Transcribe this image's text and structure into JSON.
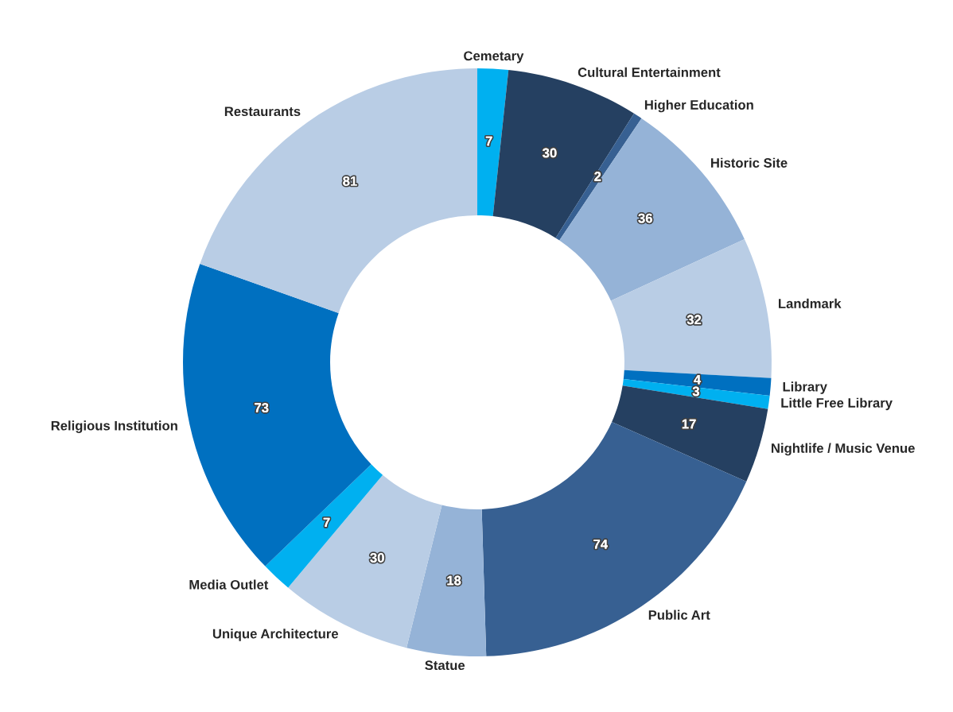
{
  "chart_data": {
    "type": "donut",
    "categories": [
      "Cemetary",
      "Cultural Entertainment",
      "Higher Education",
      "Historic Site",
      "Landmark",
      "Library",
      "Little Free Library",
      "Nightlife / Music Venue",
      "Public Art",
      "Statue",
      "Unique Architecture",
      "Media Outlet",
      "Religious Institution",
      "Restaurants"
    ],
    "values": [
      7,
      30,
      2,
      36,
      32,
      4,
      3,
      17,
      74,
      18,
      30,
      7,
      73,
      81
    ],
    "colors": [
      "#00b0f0",
      "#254061",
      "#376092",
      "#95b3d7",
      "#b9cde5",
      "#0070c0",
      "#00b0f0",
      "#254061",
      "#376092",
      "#95b3d7",
      "#b9cde5",
      "#00b0f0",
      "#0070c0",
      "#b9cde5"
    ],
    "data_labels": true,
    "legend": false
  }
}
